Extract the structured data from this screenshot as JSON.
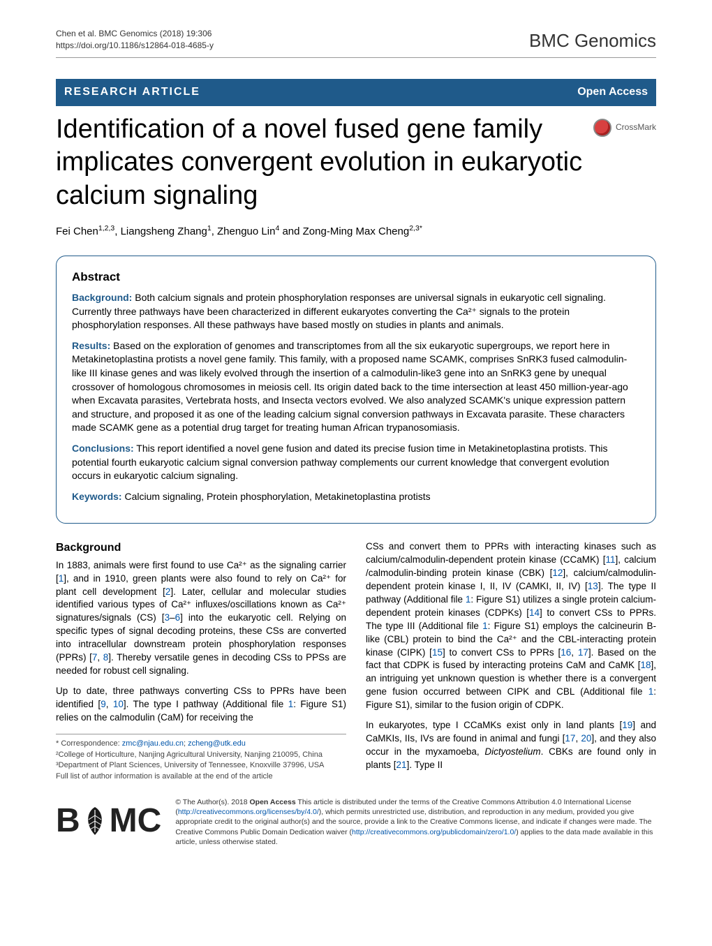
{
  "header": {
    "citation_line1": "Chen et al. BMC Genomics  (2018) 19:306",
    "citation_line2": "https://doi.org/10.1186/s12864-018-4685-y",
    "journal_part1": "BMC",
    "journal_part2": " Genomics"
  },
  "bar": {
    "article_type": "RESEARCH ARTICLE",
    "open_access": "Open Access"
  },
  "crossmark_label": "CrossMark",
  "title": "Identification of a novel fused gene family implicates convergent evolution in eukaryotic calcium signaling",
  "authors_html": "Fei Chen<sup>1,2,3</sup>, Liangsheng Zhang<sup>1</sup>, Zhenguo Lin<sup>4</sup> and Zong-Ming Max Cheng<sup>2,3*</sup>",
  "abstract": {
    "heading": "Abstract",
    "background_label": "Background:",
    "background_text": " Both calcium signals and protein phosphorylation responses are universal signals in eukaryotic cell signaling. Currently three pathways have been characterized in different eukaryotes converting the Ca²⁺ signals to the protein phosphorylation responses. All these pathways have based mostly on studies in plants and animals.",
    "results_label": "Results:",
    "results_text": " Based on the exploration of genomes and transcriptomes from all the six eukaryotic supergroups, we report here in Metakinetoplastina protists a novel gene family. This family, with a proposed name SCAMK, comprises SnRK3 fused calmodulin-like III kinase genes and was likely evolved through the insertion of a calmodulin-like3 gene into an SnRK3 gene by unequal crossover of homologous chromosomes in meiosis cell. Its origin dated back to the time intersection at least 450 million-year-ago when Excavata parasites, Vertebrata hosts, and Insecta vectors evolved. We also analyzed SCAMK's unique expression pattern and structure, and proposed it as one of the leading calcium signal conversion pathways in Excavata parasite. These characters made SCAMK gene as a potential drug target for treating human African trypanosomiasis.",
    "conclusions_label": "Conclusions:",
    "conclusions_text": " This report identified a novel gene fusion and dated its precise fusion time in Metakinetoplastina protists. This potential fourth eukaryotic calcium signal conversion pathway complements our current knowledge that convergent evolution occurs in eukaryotic calcium signaling.",
    "keywords_label": "Keywords:",
    "keywords_text": " Calcium signaling, Protein phosphorylation, Metakinetoplastina protists"
  },
  "body": {
    "background_heading": "Background",
    "left_p1": "In 1883, animals were first found to use Ca²⁺ as the signaling carrier [<a class='ref' href='#'>1</a>], and in 1910, green plants were also found to rely on Ca²⁺ for plant cell development [<a class='ref' href='#'>2</a>]. Later, cellular and molecular studies identified various types of Ca²⁺ influxes/oscillations known as Ca²⁺ signatures/signals (CS) [<a class='ref' href='#'>3</a>–<a class='ref' href='#'>6</a>] into the eukaryotic cell. Relying on specific types of signal decoding proteins, these CSs are converted into intracellular downstream protein phosphorylation responses (PPRs) [<a class='ref' href='#'>7</a>, <a class='ref' href='#'>8</a>]. Thereby versatile genes in decoding CSs to PPSs are needed for robust cell signaling.",
    "left_p2": "Up to date, three pathways converting CSs to PPRs have been identified [<a class='ref' href='#'>9</a>, <a class='ref' href='#'>10</a>]. The type I pathway (Additional file <a class='ref' href='#'>1</a>: Figure S1) relies on the calmodulin (CaM) for receiving the",
    "right_p1": "CSs and convert them to PPRs with interacting kinases such as calcium/calmodulin-dependent protein kinase (CCaMK) [<a class='ref' href='#'>11</a>], calcium /calmodulin-binding protein kinase (CBK) [<a class='ref' href='#'>12</a>], calcium/calmodulin-dependent protein kinase I, II, IV (CAMKI, II, IV) [<a class='ref' href='#'>13</a>]. The type II pathway (Additional file <a class='ref' href='#'>1</a>: Figure S1) utilizes a single protein calcium-dependent protein kinases (CDPKs) [<a class='ref' href='#'>14</a>] to convert CSs to PPRs. The type III (Additional file <a class='ref' href='#'>1</a>: Figure S1) employs the calcineurin B-like (CBL) protein to bind the Ca²⁺ and the CBL-interacting protein kinase (CIPK) [<a class='ref' href='#'>15</a>] to convert CSs to PPRs [<a class='ref' href='#'>16</a>, <a class='ref' href='#'>17</a>]. Based on the fact that CDPK is fused by interacting proteins CaM and CaMK [<a class='ref' href='#'>18</a>], an intriguing yet unknown question is whether there is a convergent gene fusion occurred between CIPK and CBL (Additional file <a class='ref' href='#'>1</a>: Figure S1), similar to the fusion origin of CDPK.",
    "right_p2": "In eukaryotes, type I CCaMKs exist only in land plants [<a class='ref' href='#'>19</a>] and CaMKIs, IIs, IVs are found in animal and fungi [<a class='ref' href='#'>17</a>, <a class='ref' href='#'>20</a>], and they also occur in the myxamoeba, <em>Dictyostelium</em>. CBKs are found only in plants [<a class='ref' href='#'>21</a>]. Type II"
  },
  "footnotes": {
    "correspondence": "* Correspondence: <a href='#'>zmc@njau.edu.cn</a>; <a href='#'>zcheng@utk.edu</a>",
    "affil2": "²College of Horticulture, Nanjing Agricultural University, Nanjing 210095, China",
    "affil3": "³Department of Plant Sciences, University of Tennessee, Knoxville 37996, USA",
    "full_list": "Full list of author information is available at the end of the article"
  },
  "license": {
    "bmc_text": "BMC",
    "text": "© The Author(s). 2018 <b>Open Access</b> This article is distributed under the terms of the Creative Commons Attribution 4.0 International License (<a href='#'>http://creativecommons.org/licenses/by/4.0/</a>), which permits unrestricted use, distribution, and reproduction in any medium, provided you give appropriate credit to the original author(s) and the source, provide a link to the Creative Commons license, and indicate if changes were made. The Creative Commons Public Domain Dedication waiver (<a href='#'>http://creativecommons.org/publicdomain/zero/1.0/</a>) applies to the data made available in this article, unless otherwise stated."
  },
  "colors": {
    "brand_blue": "#1f5a8a",
    "link": "#0055aa",
    "text": "#000000",
    "rule": "#999999"
  }
}
